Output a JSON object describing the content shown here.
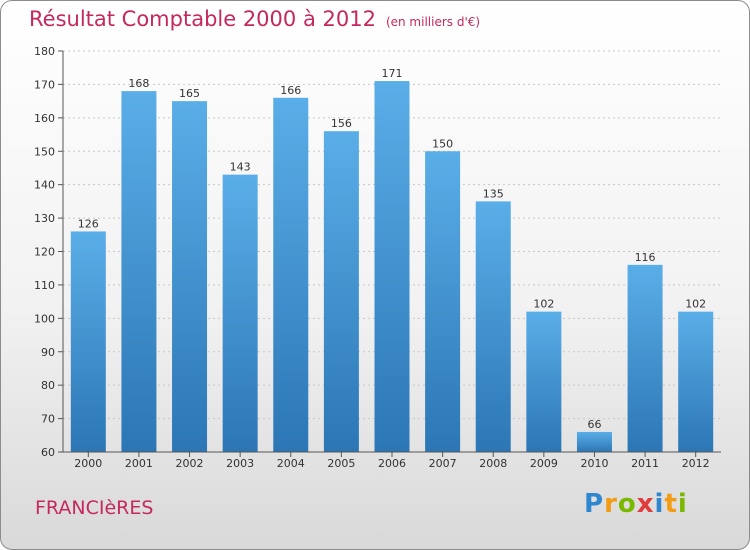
{
  "title": "Résultat Comptable 2000 à 2012",
  "subtitle": "(en milliers d'€)",
  "commune": "FRANCIèRES",
  "logo": {
    "letters": [
      "P",
      "r",
      "o",
      "x",
      "i",
      "t",
      "i"
    ],
    "colors": [
      "#2e86d1",
      "#f39c12",
      "#7ab800",
      "#e03c3c",
      "#2e86d1",
      "#f39c12",
      "#7ab800"
    ]
  },
  "colors": {
    "bar_top": "#5aaee8",
    "bar_bottom": "#2c76b5",
    "title": "#c5285f"
  },
  "chart_data": {
    "type": "bar",
    "title": "Résultat Comptable 2000 à 2012",
    "ylabel": "",
    "xlabel": "",
    "ylim": [
      60,
      180
    ],
    "yticks": [
      60,
      70,
      80,
      90,
      100,
      110,
      120,
      130,
      140,
      150,
      160,
      170,
      180
    ],
    "grid": true,
    "categories": [
      "2000",
      "2001",
      "2002",
      "2003",
      "2004",
      "2005",
      "2006",
      "2007",
      "2008",
      "2009",
      "2010",
      "2011",
      "2012"
    ],
    "values": [
      126,
      168,
      165,
      143,
      166,
      156,
      171,
      150,
      135,
      102,
      66,
      116,
      102
    ]
  }
}
